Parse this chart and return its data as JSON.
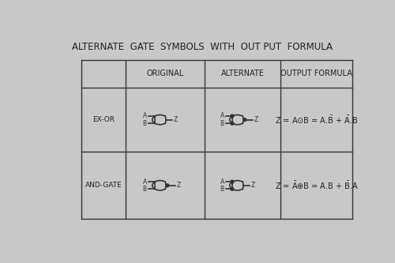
{
  "title": "ALTERNATE  GATE  SYMBOLS  WITH  OUT PUT  FORMULA",
  "bg_color": "#c8c8c8",
  "line_color": "#333333",
  "text_color": "#222222",
  "col_headers": [
    "ORIGINAL",
    "ALTERNATE",
    "OUTPUT FORMULA"
  ],
  "row_headers": [
    "EX-OR",
    "AND-GATE"
  ],
  "title_fontsize": 8.5,
  "header_fontsize": 7,
  "row_label_fontsize": 6.5,
  "formula_fontsize": 7,
  "c0": 52,
  "c1": 125,
  "c2": 253,
  "c3": 378,
  "c4": 495,
  "r0": 47,
  "r1": 92,
  "r2": 198,
  "r3": 308
}
